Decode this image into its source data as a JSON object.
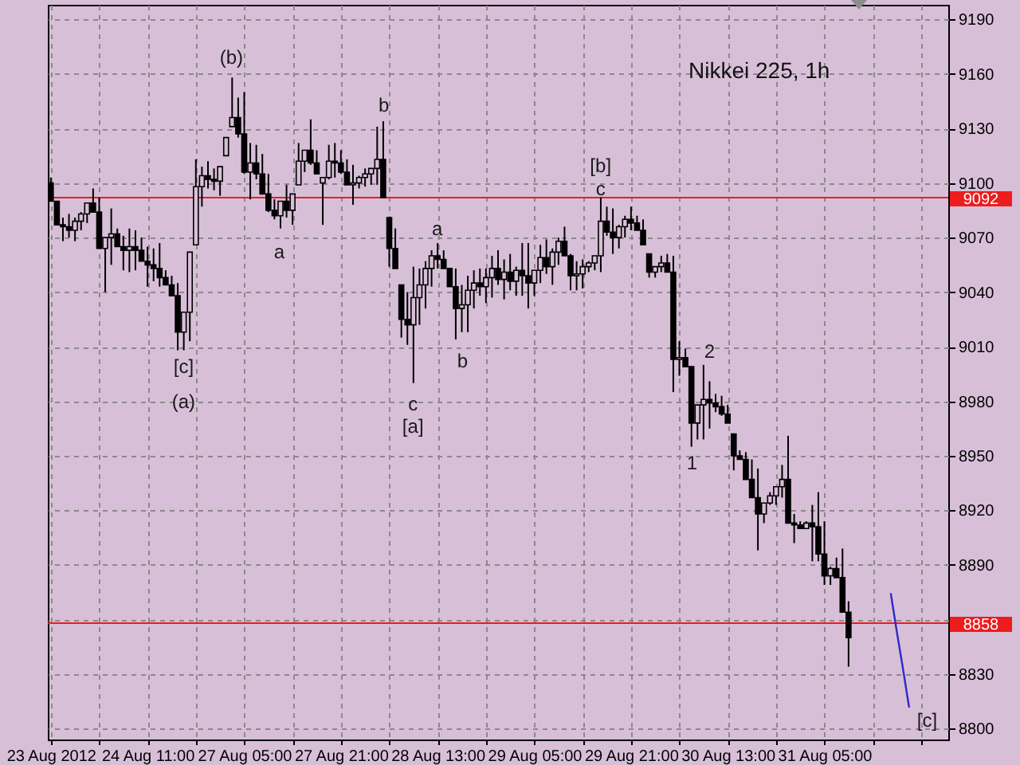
{
  "chart_data": {
    "type": "candlestick",
    "title": "Nikkei 225, 1h",
    "color": "#000000",
    "categories": [
      "23 Aug 2012",
      null,
      null,
      null,
      null,
      null,
      null,
      null,
      null,
      null,
      null,
      null,
      null,
      null,
      null,
      null,
      "24 Aug 11:00",
      null,
      null,
      null,
      null,
      null,
      null,
      null,
      null,
      null,
      null,
      null,
      null,
      null,
      null,
      null,
      "27 Aug 05:00",
      null,
      null,
      null,
      null,
      null,
      null,
      null,
      null,
      null,
      null,
      null,
      null,
      null,
      null,
      null,
      "27 Aug 21:00",
      null,
      null,
      null,
      null,
      null,
      null,
      null,
      null,
      null,
      null,
      null,
      null,
      null,
      null,
      null,
      "28 Aug 13:00",
      null,
      null,
      null,
      null,
      null,
      null,
      null,
      null,
      null,
      null,
      null,
      null,
      null,
      null,
      null,
      "29 Aug 05:00",
      null,
      null,
      null,
      null,
      null,
      null,
      null,
      null,
      null,
      null,
      null,
      null,
      null,
      null,
      null,
      "29 Aug 21:00",
      null,
      null,
      null,
      null,
      null,
      null,
      null,
      null,
      null,
      null,
      null,
      null,
      null,
      null,
      null,
      "30 Aug 13:00",
      null,
      null,
      null,
      null,
      null,
      null,
      null,
      null,
      null,
      null,
      null,
      null,
      null,
      null,
      null,
      "31 Aug 05:00",
      null,
      null,
      null,
      null,
      null,
      null,
      null,
      null,
      null,
      null,
      null,
      null,
      null,
      null,
      null,
      null,
      null,
      null,
      null,
      null
    ],
    "ohlc": [
      [
        9100,
        9103,
        9090,
        9090
      ],
      [
        9090,
        9090,
        9077,
        9077
      ],
      [
        9077,
        9081,
        9068,
        9076
      ],
      [
        9076,
        9083,
        9070,
        9074
      ],
      [
        9074,
        9081,
        9068,
        9079
      ],
      [
        9079,
        9084,
        9074,
        9083
      ],
      [
        9083,
        9089,
        9078,
        9089
      ],
      [
        9089,
        9097,
        9084,
        9084
      ],
      [
        9084,
        9092,
        9064,
        9064
      ],
      [
        9064,
        9070,
        9040,
        9070
      ],
      [
        9070,
        9086,
        9055,
        9072
      ],
      [
        9072,
        9075,
        9065,
        9065
      ],
      [
        9065,
        9071,
        9052,
        9063
      ],
      [
        9063,
        9075,
        9051,
        9065
      ],
      [
        9065,
        9074,
        9052,
        9063
      ],
      [
        9063,
        9070,
        9057,
        9057
      ],
      [
        9057,
        9065,
        9043,
        9055
      ],
      [
        9055,
        9064,
        9046,
        9053
      ],
      [
        9053,
        9067,
        9043,
        9048
      ],
      [
        9048,
        9052,
        9044,
        9044
      ],
      [
        9044,
        9049,
        9038,
        9038
      ],
      [
        9038,
        9045,
        9008,
        9018
      ],
      [
        9018,
        9029,
        9008,
        9029
      ],
      [
        9029,
        9062,
        9013,
        9062
      ],
      [
        9066,
        9113,
        9066,
        9098
      ],
      [
        9098,
        9109,
        9087,
        9104
      ],
      [
        9104,
        9112,
        9097,
        9102
      ],
      [
        9102,
        9108,
        9096,
        9101
      ],
      [
        9101,
        9109,
        9093,
        9109
      ],
      [
        9115,
        9125,
        9115,
        9125
      ],
      [
        9131,
        9158,
        9131,
        9136
      ],
      [
        9136,
        9147,
        9125,
        9127
      ],
      [
        9127,
        9150,
        9105,
        9106
      ],
      [
        9106,
        9122,
        9091,
        9111
      ],
      [
        9111,
        9121,
        9102,
        9105
      ],
      [
        9105,
        9116,
        9094,
        9094
      ],
      [
        9094,
        9105,
        9084,
        9085
      ],
      [
        9085,
        9091,
        9080,
        9082
      ],
      [
        9082,
        9090,
        9075,
        9090
      ],
      [
        9090,
        9099,
        9081,
        9085
      ],
      [
        9085,
        9094,
        9077,
        9094
      ],
      [
        9099,
        9122,
        9099,
        9112
      ],
      [
        9112,
        9118,
        9106,
        9118
      ],
      [
        9118,
        9135,
        9110,
        9111
      ],
      [
        9111,
        9118,
        9105,
        9105
      ],
      [
        9100,
        9103,
        9077,
        9103
      ],
      [
        9103,
        9121,
        9102,
        9112
      ],
      [
        9112,
        9122,
        9103,
        9111
      ],
      [
        9111,
        9118,
        9105,
        9106
      ],
      [
        9106,
        9113,
        9099,
        9099
      ],
      [
        9099,
        9110,
        9088,
        9100
      ],
      [
        9100,
        9104,
        9097,
        9103
      ],
      [
        9103,
        9108,
        9098,
        9105
      ],
      [
        9105,
        9108,
        9099,
        9108
      ],
      [
        9108,
        9131,
        9099,
        9113
      ],
      [
        9113,
        9134,
        9092,
        9092
      ],
      [
        9081,
        9081,
        9054,
        9064
      ],
      [
        9064,
        9075,
        9053,
        9053
      ],
      [
        9044,
        9044,
        9015,
        9025
      ],
      [
        9025,
        9040,
        9011,
        9022
      ],
      [
        9022,
        9054,
        8990,
        9037
      ],
      [
        9037,
        9053,
        9022,
        9044
      ],
      [
        9044,
        9057,
        9031,
        9053
      ],
      [
        9053,
        9063,
        9043,
        9060
      ],
      [
        9060,
        9067,
        9053,
        9058
      ],
      [
        9058,
        9063,
        9053,
        9053
      ],
      [
        9053,
        9053,
        9043,
        9043
      ],
      [
        9043,
        9053,
        9014,
        9031
      ],
      [
        9031,
        9044,
        9018,
        9033
      ],
      [
        9033,
        9049,
        9018,
        9041
      ],
      [
        9041,
        9052,
        9031,
        9045
      ],
      [
        9045,
        9053,
        9038,
        9043
      ],
      [
        9043,
        9053,
        9034,
        9048
      ],
      [
        9048,
        9060,
        9037,
        9053
      ],
      [
        9053,
        9063,
        9044,
        9047
      ],
      [
        9047,
        9058,
        9036,
        9051
      ],
      [
        9051,
        9061,
        9041,
        9046
      ],
      [
        9046,
        9054,
        9038,
        9052
      ],
      [
        9052,
        9067,
        9038,
        9049
      ],
      [
        9049,
        9067,
        9031,
        9045
      ],
      [
        9045,
        9052,
        9038,
        9052
      ],
      [
        9052,
        9066,
        9045,
        9059
      ],
      [
        9059,
        9069,
        9050,
        9054
      ],
      [
        9054,
        9064,
        9044,
        9062
      ],
      [
        9062,
        9070,
        9055,
        9068
      ],
      [
        9068,
        9076,
        9060,
        9060
      ],
      [
        9060,
        9061,
        9041,
        9049
      ],
      [
        9049,
        9057,
        9041,
        9050
      ],
      [
        9050,
        9058,
        9042,
        9054
      ],
      [
        9054,
        9057,
        9051,
        9056
      ],
      [
        9056,
        9060,
        9052,
        9060
      ],
      [
        9060,
        9092,
        9051,
        9079
      ],
      [
        9079,
        9087,
        9071,
        9073
      ],
      [
        9073,
        9086,
        9061,
        9070
      ],
      [
        9070,
        9077,
        9064,
        9076
      ],
      [
        9076,
        9082,
        9070,
        9080
      ],
      [
        9080,
        9087,
        9074,
        9078
      ],
      [
        9078,
        9082,
        9074,
        9074
      ],
      [
        9074,
        9080,
        9066,
        9066
      ],
      [
        9061,
        9061,
        9048,
        9051
      ],
      [
        9051,
        9054,
        9048,
        9054
      ],
      [
        9054,
        9060,
        9051,
        9056
      ],
      [
        9056,
        9061,
        9051,
        9051
      ],
      [
        9051,
        9060,
        8985,
        9003
      ],
      [
        9003,
        9013,
        8994,
        9004
      ],
      [
        9004,
        9009,
        8999,
        8999
      ],
      [
        8999,
        8999,
        8955,
        8968
      ],
      [
        8968,
        8978,
        8959,
        8978
      ],
      [
        8978,
        9000,
        8959,
        8981
      ],
      [
        8981,
        8991,
        8965,
        8979
      ],
      [
        8979,
        8984,
        8974,
        8977
      ],
      [
        8977,
        8983,
        8972,
        8973
      ],
      [
        8973,
        8978,
        8968,
        8968
      ],
      [
        8962,
        8962,
        8942,
        8950
      ],
      [
        8950,
        8953,
        8948,
        8948
      ],
      [
        8948,
        8952,
        8937,
        8937
      ],
      [
        8937,
        8948,
        8927,
        8927
      ],
      [
        8927,
        8943,
        8898,
        8918
      ],
      [
        8918,
        8924,
        8913,
        8924
      ],
      [
        8924,
        8930,
        8923,
        8928
      ],
      [
        8928,
        8933,
        8923,
        8933
      ],
      [
        8933,
        8945,
        8927,
        8937
      ],
      [
        8937,
        8961,
        8913,
        8913
      ],
      [
        8913,
        8918,
        8902,
        8912
      ],
      [
        8912,
        8914,
        8910,
        8910
      ],
      [
        8910,
        8914,
        8910,
        8913
      ],
      [
        8913,
        8923,
        8892,
        8911
      ],
      [
        8911,
        8930,
        8892,
        8896
      ],
      [
        8896,
        8914,
        8879,
        8884
      ],
      [
        8884,
        8889,
        8879,
        8888
      ],
      [
        8888,
        8894,
        8883,
        8883
      ],
      [
        8883,
        8899,
        8864,
        8864
      ],
      [
        8864,
        8870,
        8834,
        8850
      ],
      null,
      null,
      null,
      null,
      null,
      null,
      null,
      null,
      null,
      null,
      null,
      null,
      null,
      null,
      null,
      null
    ],
    "series": [
      {
        "type": "line",
        "color": "#2a2ac8",
        "values": [
          null,
          null,
          null,
          null,
          null,
          null,
          null,
          null,
          null,
          null,
          null,
          null,
          null,
          null,
          null,
          null,
          null,
          null,
          null,
          null,
          null,
          null,
          null,
          null,
          null,
          null,
          null,
          null,
          null,
          null,
          null,
          null,
          null,
          null,
          null,
          null,
          null,
          null,
          null,
          null,
          null,
          null,
          null,
          null,
          null,
          null,
          null,
          null,
          null,
          null,
          null,
          null,
          null,
          null,
          null,
          null,
          null,
          null,
          null,
          null,
          null,
          null,
          null,
          null,
          null,
          null,
          null,
          null,
          null,
          null,
          null,
          null,
          null,
          null,
          null,
          null,
          null,
          null,
          null,
          null,
          null,
          null,
          null,
          null,
          null,
          null,
          null,
          null,
          null,
          null,
          null,
          null,
          null,
          null,
          null,
          null,
          null,
          null,
          null,
          null,
          null,
          null,
          null,
          null,
          null,
          null,
          null,
          null,
          null,
          null,
          null,
          null,
          null,
          null,
          null,
          null,
          null,
          null,
          null,
          null,
          null,
          null,
          null,
          null,
          null,
          null,
          null,
          null,
          null,
          null,
          null,
          null,
          null,
          null,
          null,
          null,
          null,
          null,
          null,
          8874,
          8853,
          8833,
          8812,
          null,
          null,
          null,
          null,
          null,
          null
        ]
      }
    ],
    "ylim": [
      8794,
      9198
    ],
    "yticks": [
      8800,
      8830,
      {
        "value": 8860,
        "label": null
      },
      8890,
      8920,
      8950,
      8980,
      9010,
      9040,
      9070,
      9100,
      9130,
      9160,
      9190
    ],
    "grid": true,
    "ref_lines": [
      {
        "axis": "y",
        "value": 9092,
        "label": "9092",
        "color": "#ee1c1c"
      },
      {
        "axis": "y",
        "value": 8858,
        "label": "8858",
        "color": "#ee1c1c"
      }
    ],
    "annotations": [
      "(b)",
      "a",
      "[c]",
      "(a)",
      "b",
      "a",
      "c",
      "[a]",
      "b",
      "[b]",
      "c",
      "1",
      "2",
      "[c]"
    ]
  }
}
